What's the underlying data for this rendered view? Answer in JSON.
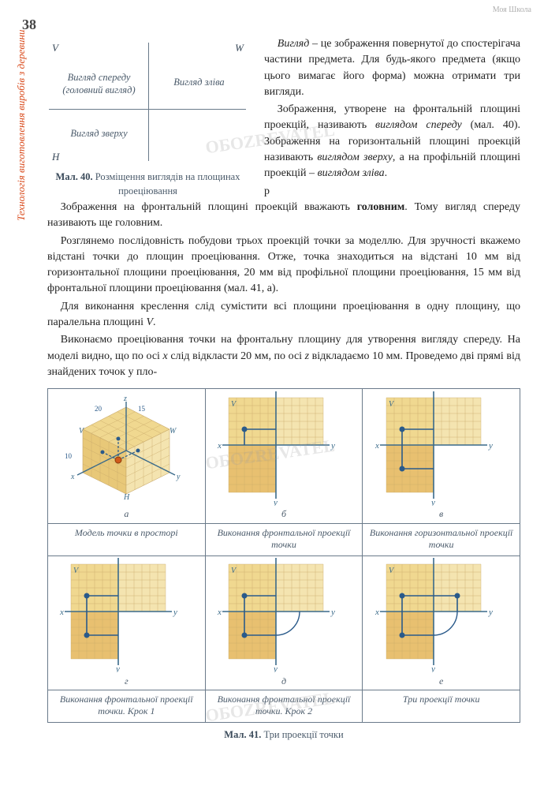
{
  "page_number": "38",
  "side_label": "Технологія виготовлення виробів з деревини",
  "watermark_text": "ОБОZREVATEL",
  "header_logo": "Моя Школа",
  "fig40": {
    "labels": {
      "V": "V",
      "W": "W",
      "H": "H"
    },
    "q1": "Вигляд спереду\n(головний вигляд)",
    "q2": "Вигляд зліва",
    "q3": "Вигляд зверху",
    "caption_bold": "Мал. 40.",
    "caption_rest": " Розміщення виглядів на площинах проеціювання"
  },
  "top_paragraphs": [
    "Вигляд – це зображення повернутої до спостерігача частини предмета. Для будь-якого предмета (якщо цього вимагає його форма) можна отримати три вигляди.",
    "Зображення, утворене на фронтальній площині проекцій, називають виглядом спереду (мал. 40). Зображення на горизонтальній площині проекцій називають виглядом зверху, а на профільній площині проекцій – виглядом зліва."
  ],
  "body_paragraphs": [
    "Зображення на фронтальній площині проекцій вважають головним. Тому вигляд спереду називають ще головним.",
    "Розглянемо послідовність побудови трьох проекцій точки за моделлю. Для зручності вкажемо відстані точки до площин проеціювання. Отже, точка знаходиться на відстані 10 мм від горизонтальної площини проеціювання, 20 мм від профільної площини проеціювання, 15 мм від фронтальної площини проеціювання (мал. 41, а).",
    "Для виконання креслення слід сумістити всі площини проеціювання в одну площину, що паралельна площині V.",
    "Виконаємо проеціювання точки на фронтальну площину для утворення вигляду спереду. На моделі видно, що по осі x слід відкласти 20 мм, по осі z відкладаємо 10 мм. Проведемо дві прямі від знайдених точок у пло-"
  ],
  "fig41": {
    "cells": [
      {
        "sub": "а",
        "caption": "Модель точки в просторі"
      },
      {
        "sub": "б",
        "caption": "Виконання фронтальної проекції точки"
      },
      {
        "sub": "в",
        "caption": "Виконання горизонтальної проекції точки"
      },
      {
        "sub": "г",
        "caption": "Виконання фронтальної проекції точки. Крок 1"
      },
      {
        "sub": "д",
        "caption": "Виконання фронтальної проекції точки. Крок 2"
      },
      {
        "sub": "е",
        "caption": "Три проекції точки"
      }
    ],
    "caption_bold": "Мал. 41.",
    "caption_rest": " Три проекції точки",
    "colors": {
      "grid_light": "#e8d4a8",
      "grid_dark": "#c9a96a",
      "fill_v": "#f0d890",
      "fill_h": "#e8c070",
      "fill_w": "#f4e4b0",
      "axis": "#3a6a8a",
      "proj_line": "#2a5a8a",
      "point_fill": "#d05a1a",
      "dim_color": "#2a5a8a"
    },
    "axis_labels": {
      "x": "x",
      "y": "y",
      "z": "z",
      "V": "V",
      "H": "H",
      "W": "W"
    },
    "dims": {
      "d20": "20",
      "d15": "15",
      "d10": "10"
    }
  }
}
